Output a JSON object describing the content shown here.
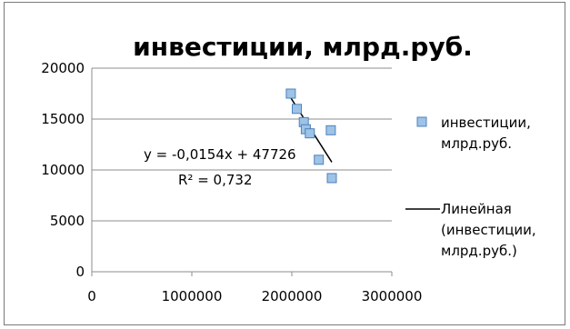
{
  "chart_data": {
    "type": "scatter",
    "title": "инвестиции, млрд.руб.",
    "xlabel": "",
    "ylabel": "",
    "xlim": [
      0,
      3000000
    ],
    "ylim": [
      0,
      20000
    ],
    "x_ticks": [
      0,
      1000000,
      2000000,
      3000000
    ],
    "x_tick_labels": [
      "0",
      "1000000",
      "2000000",
      "3000000"
    ],
    "y_ticks": [
      0,
      5000,
      10000,
      15000,
      20000
    ],
    "y_tick_labels": [
      "0",
      "5000",
      "10000",
      "15000",
      "20000"
    ],
    "grid": {
      "horizontal": true,
      "vertical": false
    },
    "series": [
      {
        "name": "инвестиции, млрд.руб.",
        "marker": "square",
        "color": "#4f81bd",
        "fill": "#9dc3e6",
        "points": [
          {
            "x": 1990000,
            "y": 17500
          },
          {
            "x": 2050000,
            "y": 16000
          },
          {
            "x": 2120000,
            "y": 14700
          },
          {
            "x": 2140000,
            "y": 14000
          },
          {
            "x": 2180000,
            "y": 13600
          },
          {
            "x": 2270000,
            "y": 11000
          },
          {
            "x": 2390000,
            "y": 13900
          },
          {
            "x": 2400000,
            "y": 9200
          }
        ]
      }
    ],
    "trendline": {
      "name": "Линейная (инвестиции, млрд.руб.)",
      "type": "linear",
      "color": "#000000",
      "x_start": 1990000,
      "x_end": 2400000,
      "slope": -0.0154,
      "intercept": 47726,
      "equation": "y = -0,0154x + 47726",
      "r_squared": "R² = 0,732"
    },
    "legend": {
      "placement": "right",
      "entries": [
        {
          "lines": [
            "инвестиции,",
            "млрд.руб."
          ],
          "marker": "square"
        },
        {
          "lines": [
            "Линейная",
            "(инвестиции,",
            "млрд.руб.)"
          ],
          "marker": "line"
        }
      ]
    }
  }
}
